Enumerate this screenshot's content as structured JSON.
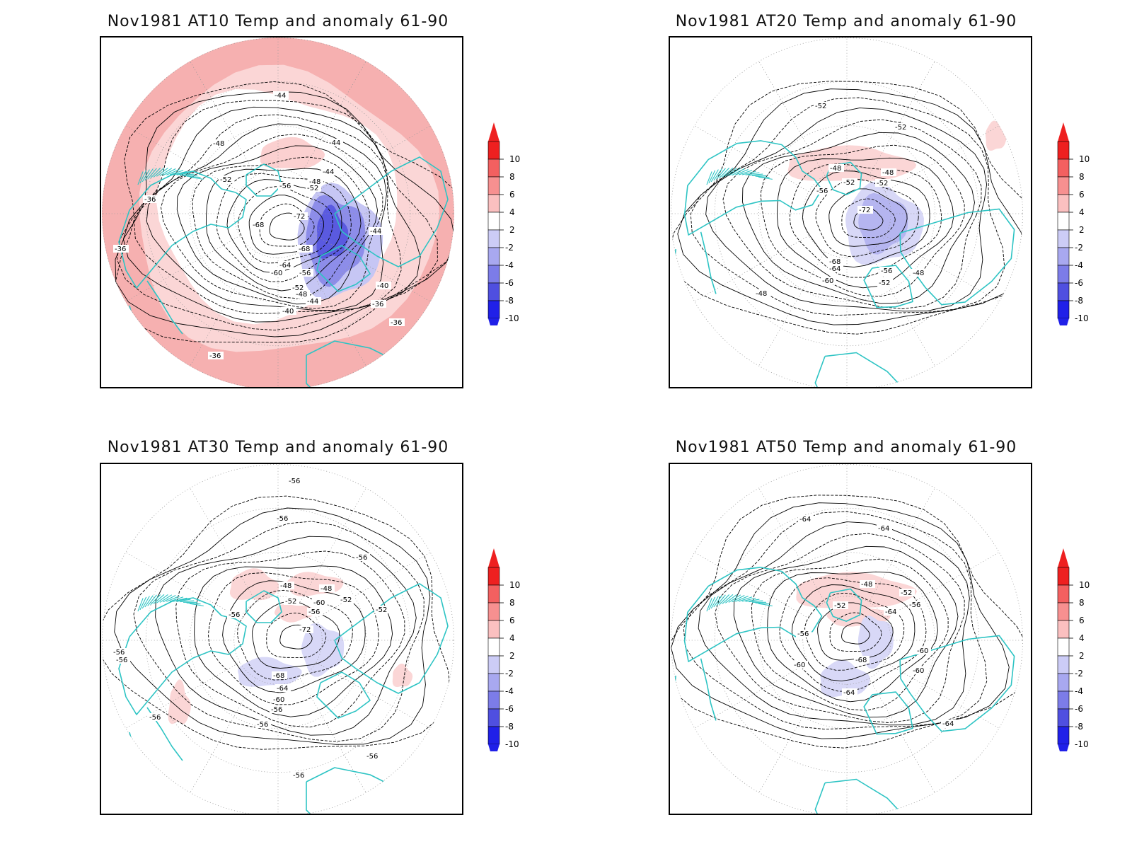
{
  "panels": [
    {
      "title": "Nov1981 AT10 Temp and anomaly 61-90",
      "contour_labels": [
        "-44",
        "-48",
        "-44",
        "-44",
        "-52",
        "-56",
        "-48",
        "-52",
        "-36",
        "-68",
        "-72",
        "-44",
        "-36",
        "-68",
        "-64",
        "-60",
        "-56",
        "-52",
        "-48",
        "-40",
        "-44",
        "-40",
        "-36",
        "-36",
        "-36"
      ]
    },
    {
      "title": "Nov1981 AT20 Temp and anomaly 61-90",
      "contour_labels": [
        "-52",
        "-52",
        "-48",
        "-48",
        "-52",
        "-56",
        "-52",
        "-72",
        "-68",
        "-64",
        "-60",
        "-56",
        "-52",
        "-48",
        "-48"
      ]
    },
    {
      "title": "Nov1981 AT30 Temp and anomaly 61-90",
      "contour_labels": [
        "-56",
        "-56",
        "-56",
        "-48",
        "-48",
        "-52",
        "-52",
        "-56",
        "-60",
        "-56",
        "-52",
        "-72",
        "-56",
        "-68",
        "-64",
        "-60",
        "-56",
        "-56",
        "-56",
        "-56",
        "-56",
        "-56"
      ]
    },
    {
      "title": "Nov1981 AT50 Temp and anomaly 61-90",
      "contour_labels": [
        "-64",
        "-64",
        "-48",
        "-52",
        "-52",
        "-56",
        "-64",
        "-56",
        "-60",
        "-60",
        "-68",
        "-60",
        "-64",
        "-64"
      ]
    }
  ],
  "colorbar": {
    "labels": [
      "10",
      "8",
      "6",
      "4",
      "2",
      "-2",
      "-4",
      "-6",
      "-8",
      "-10"
    ],
    "colors": [
      "#ee2020",
      "#f36060",
      "#f79090",
      "#fbc0c0",
      "#ffffff",
      "#ccccf6",
      "#a8a8f0",
      "#7c7ce8",
      "#4f4fe0",
      "#2020e8"
    ]
  },
  "colors": {
    "coastline": "#2ec4c4",
    "contour": "#000000",
    "grid": "#999999"
  }
}
